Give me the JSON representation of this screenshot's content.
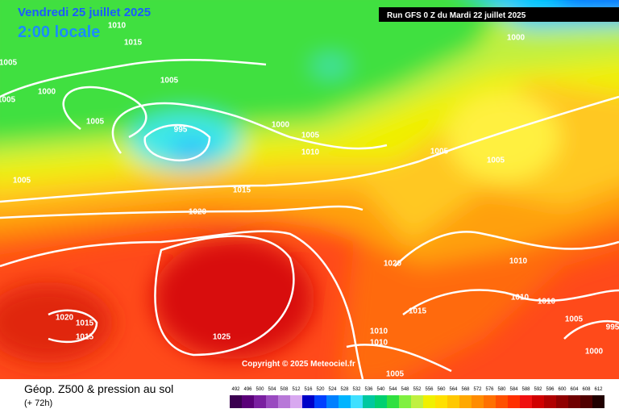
{
  "header": {
    "date": "Vendredi 25 juillet 2025",
    "time": "2:00 locale",
    "run": "Run GFS 0 Z du Mardi 22 juillet 2025"
  },
  "map": {
    "isobar_labels": [
      1010,
      1015,
      1005,
      1005,
      1000,
      1005,
      1005,
      995,
      1000,
      1005,
      1010,
      1005,
      1005,
      1005,
      1015,
      1020,
      1020,
      1010,
      1010,
      1010,
      1015,
      1020,
      1015,
      1015,
      1025,
      1010,
      1010,
      1005,
      995,
      1000,
      1005,
      1000
    ],
    "copyright": "Copyright © 2025 Meteociel.fr"
  },
  "legend": {
    "title": "Géop. Z500 & pression au sol",
    "subtitle": "(+ 72h)",
    "scale": [
      492,
      496,
      500,
      504,
      508,
      512,
      516,
      520,
      524,
      528,
      532,
      536,
      540,
      544,
      548,
      552,
      556,
      560,
      564,
      568,
      572,
      576,
      580,
      584,
      588,
      592,
      596,
      600,
      604,
      608,
      612
    ],
    "colors": [
      "#3b0050",
      "#5a0078",
      "#7a1fa0",
      "#9a4ac0",
      "#b878d8",
      "#d8a8f0",
      "#0000c8",
      "#0040ff",
      "#0080ff",
      "#00b4ff",
      "#40e0ff",
      "#00c8a0",
      "#00d070",
      "#30e040",
      "#80f040",
      "#c0f040",
      "#f0f000",
      "#ffe000",
      "#ffc800",
      "#ffa800",
      "#ff8c00",
      "#ff7000",
      "#ff5000",
      "#ff3000",
      "#f01010",
      "#d00000",
      "#b00000",
      "#900000",
      "#700000",
      "#500000",
      "#200000"
    ]
  }
}
